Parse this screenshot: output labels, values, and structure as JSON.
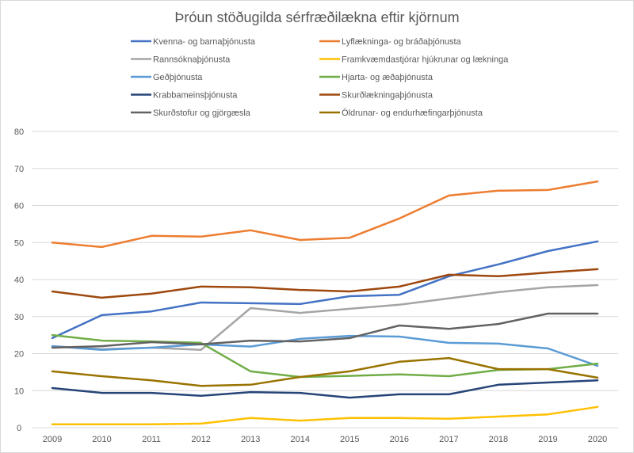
{
  "chart_data": {
    "type": "line",
    "title": "Þróun stöðugilda sérfræðilækna eftir kjörnum",
    "xlabel": "",
    "ylabel": "",
    "ylim": [
      0,
      80
    ],
    "yticks": [
      0,
      10,
      20,
      30,
      40,
      50,
      60,
      70,
      80
    ],
    "grid": true,
    "legend_position": "top",
    "categories": [
      "2009",
      "2010",
      "2011",
      "2012",
      "2013",
      "2014",
      "2015",
      "2016",
      "2017",
      "2018",
      "2019",
      "2020"
    ],
    "series": [
      {
        "name": "Kvenna- og barnaþjónusta",
        "color": "#4472C4",
        "values": [
          24.2,
          30.4,
          31.4,
          33.8,
          33.6,
          33.4,
          35.5,
          35.9,
          40.9,
          44.1,
          47.7,
          50.3
        ]
      },
      {
        "name": "Lyflækninga- og bráðaþjónusta",
        "color": "#ED7D31",
        "values": [
          50.0,
          48.8,
          51.8,
          51.6,
          53.3,
          50.7,
          51.3,
          56.5,
          62.7,
          64.0,
          64.2,
          66.5
        ]
      },
      {
        "name": "Rannsóknaþjónusta",
        "color": "#A5A5A5",
        "values": [
          22.0,
          21.2,
          21.6,
          21.0,
          32.3,
          31.0,
          32.1,
          33.2,
          34.9,
          36.6,
          37.9,
          38.5
        ]
      },
      {
        "name": "Framkvæmdastjórar hjúkrunar og lækninga",
        "color": "#FFC000",
        "values": [
          0.9,
          0.9,
          0.9,
          1.1,
          2.6,
          1.9,
          2.6,
          2.6,
          2.4,
          3.0,
          3.6,
          5.6
        ]
      },
      {
        "name": "Geðþjónusta",
        "color": "#5B9BD5",
        "values": [
          22.0,
          21.0,
          21.6,
          22.5,
          21.9,
          24.0,
          24.8,
          24.6,
          22.9,
          22.7,
          21.4,
          16.7
        ]
      },
      {
        "name": "Hjarta- og æðaþjónusta",
        "color": "#70AD47",
        "values": [
          25.0,
          23.5,
          23.3,
          22.9,
          15.2,
          13.7,
          14.0,
          14.4,
          13.9,
          15.6,
          15.8,
          17.3
        ]
      },
      {
        "name": "Krabbameinsþjónusta",
        "color": "#264478",
        "values": [
          10.7,
          9.4,
          9.4,
          8.6,
          9.6,
          9.4,
          8.1,
          9.0,
          9.0,
          11.6,
          12.2,
          12.8
        ]
      },
      {
        "name": "Skurðlækningaþjónusta",
        "color": "#9E480E",
        "values": [
          36.8,
          35.1,
          36.2,
          38.1,
          37.9,
          37.2,
          36.8,
          38.1,
          41.3,
          40.9,
          41.9,
          42.8
        ]
      },
      {
        "name": "Skurðstofur og gjörgæsla",
        "color": "#636363",
        "values": [
          21.6,
          22.0,
          23.1,
          22.5,
          23.5,
          23.3,
          24.2,
          27.6,
          26.7,
          28.0,
          30.8,
          30.8
        ]
      },
      {
        "name": "Öldrunar- og endurhæfingarþjónusta",
        "color": "#997300",
        "values": [
          15.2,
          13.9,
          12.8,
          11.3,
          11.6,
          13.7,
          15.2,
          17.8,
          18.8,
          15.8,
          15.8,
          13.5
        ]
      }
    ]
  }
}
